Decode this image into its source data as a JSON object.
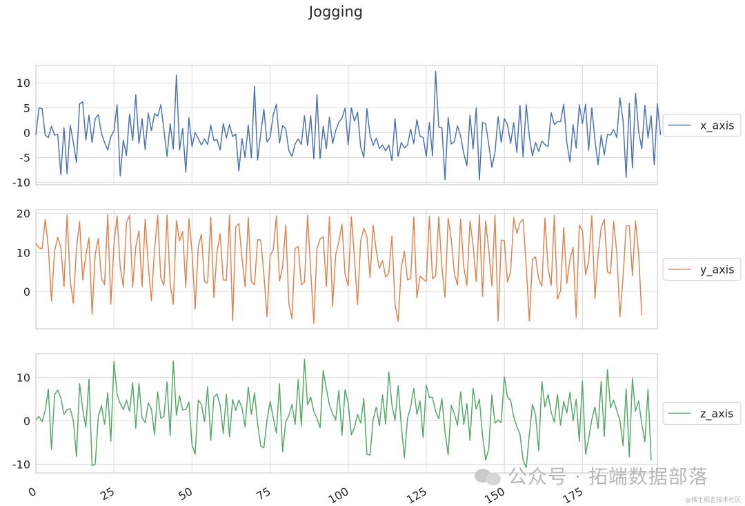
{
  "chart_data": {
    "type": "line",
    "title": "Jogging",
    "xlim": [
      0,
      199
    ],
    "x_ticks": [
      0,
      25,
      50,
      75,
      100,
      125,
      150,
      175
    ],
    "x_tick_labels": [
      "0",
      "25",
      "50",
      "75",
      "100",
      "125",
      "150",
      "175"
    ],
    "grid": true,
    "legend_position": "right",
    "series": [
      {
        "name": "x_axis",
        "color": "#4c72b0",
        "ylim": [
          -10.5,
          13.5
        ],
        "y_ticks": [
          10,
          5,
          0,
          -5,
          -10
        ],
        "values": [
          -0.5,
          5.0,
          4.8,
          -0.5,
          -1.0,
          1.3,
          -0.5,
          -0.4,
          -8.5,
          1.0,
          -8.3,
          1.5,
          -2.0,
          -6.0,
          5.8,
          6.2,
          -1.5,
          3.5,
          -2.0,
          2.8,
          3.6,
          -0.2,
          -2.0,
          -3.5,
          -0.8,
          0.3,
          5.6,
          -8.7,
          -1.5,
          -4.6,
          3.7,
          -1.6,
          7.6,
          -2.2,
          2.8,
          -3.4,
          3.9,
          0.4,
          3.8,
          3.3,
          5.6,
          0.5,
          -4.8,
          1.8,
          -3.3,
          11.6,
          -3.5,
          0.8,
          -8.0,
          3.0,
          -2.8,
          0.0,
          -1.2,
          -2.5,
          -1.3,
          -2.4,
          1.5,
          -1.6,
          -1.4,
          -3.5,
          1.8,
          -1.1,
          1.6,
          -0.8,
          -0.3,
          -7.7,
          -1.2,
          -5.0,
          1.5,
          -5.1,
          9.3,
          -5.5,
          -0.3,
          4.7,
          -1.9,
          -1.0,
          3.6,
          5.7,
          -2.1,
          1.4,
          0.8,
          -3.6,
          -4.8,
          -2.3,
          -1.3,
          -2.4,
          3.4,
          -2.6,
          3.4,
          -5.3,
          7.6,
          -5.2,
          1.3,
          -3.2,
          3.1,
          -2.2,
          0.4,
          2.1,
          2.9,
          4.9,
          -2.5,
          5.0,
          2.3,
          4.1,
          -2.9,
          -5.0,
          4.8,
          -0.5,
          -2.6,
          -1.1,
          -3.2,
          -2.5,
          -3.7,
          -2.5,
          -5.6,
          2.8,
          -4.8,
          -2.0,
          -3.1,
          -2.5,
          0.7,
          -2.2,
          2.6,
          -0.7,
          -1.0,
          -4.8,
          2.0,
          -4.7,
          12.3,
          1.1,
          1.0,
          -9.5,
          3.0,
          -2.3,
          -1.8,
          1.4,
          -0.7,
          -4.2,
          -6.7,
          3.5,
          -3.3,
          5.0,
          -9.5,
          2.0,
          1.8,
          -2.4,
          -7.0,
          -4.0,
          3.2,
          -2.0,
          2.8,
          1.6,
          -2.2,
          2.0,
          -4.0,
          5.5,
          -4.9,
          5.6,
          -0.8,
          -4.7,
          -2.0,
          -3.8,
          -1.7,
          -2.4,
          -2.8,
          4.0,
          1.6,
          2.2,
          2.2,
          5.7,
          -2.0,
          -5.9,
          1.6,
          -3.1,
          5.6,
          1.8,
          5.7,
          -3.6,
          5.0,
          -1.4,
          -6.5,
          -0.5,
          -4.5,
          -0.4,
          -0.5,
          0.6,
          -1.0,
          7.0,
          2.4,
          -9.0,
          5.9,
          -7.1,
          7.9,
          0.2,
          -3.3,
          5.5,
          -1.1,
          3.4,
          -6.5,
          5.8,
          -0.5
        ]
      },
      {
        "name": "y_axis",
        "color": "#dd8452",
        "ylim": [
          -9.5,
          21.0
        ],
        "y_ticks": [
          20,
          10,
          0
        ],
        "values": [
          12.4,
          11.2,
          11.0,
          18.5,
          11.2,
          -2.4,
          10.5,
          13.9,
          11.3,
          1.3,
          19.7,
          2.8,
          -3.0,
          11.1,
          18.0,
          3.0,
          9.3,
          13.8,
          -5.8,
          9.6,
          13.6,
          3.4,
          1.8,
          19.7,
          -3.2,
          12.1,
          19.4,
          6.4,
          1.2,
          17.6,
          19.5,
          1.2,
          11.6,
          15.6,
          1.3,
          18.6,
          6.7,
          -2.3,
          10.9,
          19.5,
          3.5,
          1.6,
          19.6,
          1.9,
          -3.2,
          18.2,
          13.0,
          15.4,
          1.1,
          18.7,
          10.3,
          -4.4,
          11.5,
          14.7,
          2.6,
          2.2,
          19.1,
          -1.5,
          10.2,
          14.8,
          3.0,
          2.9,
          19.6,
          -7.4,
          16.5,
          17.4,
          8.5,
          1.3,
          19.0,
          2.5,
          1.8,
          13.3,
          13.2,
          4.6,
          -6.4,
          9.2,
          10.7,
          19.4,
          2.7,
          6.3,
          17.1,
          -3.0,
          -6.9,
          11.0,
          11.6,
          1.8,
          2.5,
          19.6,
          5.2,
          -8.1,
          10.9,
          13.5,
          14.0,
          1.3,
          19.2,
          -3.8,
          9.5,
          12.7,
          17.3,
          4.5,
          1.5,
          19.2,
          8.7,
          -3.3,
          13.0,
          16.2,
          14.0,
          3.6,
          17.0,
          10.3,
          6.0,
          8.0,
          3.7,
          4.8,
          14.2,
          -3.3,
          -7.6,
          6.2,
          10.3,
          3.0,
          3.4,
          19.1,
          -1.6,
          4.0,
          3.2,
          2.6,
          19.3,
          3.3,
          4.0,
          19.2,
          6.2,
          -1.4,
          18.8,
          13.4,
          4.6,
          1.7,
          18.6,
          6.4,
          1.6,
          18.1,
          11.8,
          2.6,
          19.7,
          -1.2,
          18.1,
          10.8,
          1.5,
          19.6,
          -7.5,
          13.2,
          13.0,
          2.4,
          5.2,
          18.9,
          14.9,
          17.6,
          18.5,
          6.5,
          -7.5,
          8.3,
          8.9,
          3.3,
          1.4,
          18.8,
          6.0,
          1.6,
          19.5,
          -1.9,
          0.2,
          16.4,
          2.1,
          8.3,
          11.3,
          -6.6,
          17.0,
          15.7,
          4.3,
          7.8,
          19.4,
          -1.8,
          9.3,
          16.4,
          18.5,
          5.1,
          4.6,
          18.0,
          9.9,
          -6.4,
          3.7,
          16.8,
          16.9,
          4.1,
          18.1,
          9.6,
          -6.0
        ]
      },
      {
        "name": "z_axis",
        "color": "#55a868",
        "ylim": [
          -12.0,
          15.5
        ],
        "y_ticks": [
          10,
          0,
          -10
        ],
        "values": [
          0.3,
          1.0,
          -0.2,
          2.5,
          7.3,
          -6.6,
          6.0,
          7.1,
          5.3,
          1.5,
          2.6,
          2.8,
          0.1,
          -8.2,
          8.6,
          2.7,
          -1.5,
          9.6,
          -10.3,
          -10.0,
          1.0,
          3.5,
          -0.8,
          6.5,
          -4.7,
          13.7,
          6.2,
          4.0,
          2.6,
          4.8,
          2.2,
          8.8,
          -1.7,
          8.6,
          0.7,
          -0.4,
          4.1,
          2.7,
          -3.2,
          6.7,
          0.6,
          1.0,
          9.0,
          -3.4,
          13.8,
          1.3,
          5.8,
          2.5,
          2.6,
          4.3,
          -5.5,
          -7.7,
          4.8,
          3.8,
          -0.2,
          7.9,
          -4.5,
          5.5,
          6.2,
          3.6,
          -2.9,
          6.1,
          -3.7,
          4.9,
          2.4,
          4.8,
          3.0,
          -1.4,
          7.8,
          1.5,
          6.5,
          -0.6,
          -5.8,
          -6.2,
          0.1,
          4.5,
          0.8,
          -2.8,
          8.6,
          -7.2,
          -0.2,
          1.2,
          3.8,
          -0.8,
          9.5,
          -1.2,
          14.2,
          3.7,
          5.5,
          2.2,
          0.6,
          -1.6,
          11.6,
          7.4,
          3.7,
          1.6,
          0.2,
          7.0,
          -3.3,
          7.2,
          4.2,
          -3.2,
          -1.6,
          1.5,
          -0.5,
          5.2,
          -7.7,
          -7.9,
          0.4,
          3.2,
          -1.1,
          6.0,
          -0.7,
          11.3,
          3.7,
          0.1,
          8.1,
          -1.1,
          -8.5,
          0.6,
          3.2,
          7.5,
          1.5,
          4.6,
          -3.8,
          8.3,
          5.4,
          5.4,
          2.2,
          0.5,
          5.2,
          -2.6,
          -7.8,
          3.6,
          1.6,
          -1.0,
          6.7,
          -0.8,
          4.0,
          -4.5,
          7.5,
          2.7,
          5.0,
          -3.3,
          -9.0,
          -6.5,
          6.0,
          -0.5,
          0.2,
          -0.4,
          10.1,
          5.5,
          4.8,
          0.9,
          -1.3,
          -3.1,
          -9.0,
          -10.8,
          -3.2,
          3.8,
          1.3,
          -6.9,
          9.1,
          3.2,
          6.1,
          2.0,
          -0.3,
          6.1,
          -1.0,
          4.5,
          1.8,
          6.6,
          0.0,
          5.0,
          -4.8,
          9.2,
          -7.7,
          -4.0,
          0.3,
          3.2,
          -1.8,
          9.1,
          -3.6,
          11.8,
          3.0,
          4.8,
          2.4,
          0.1,
          -5.7,
          7.4,
          -8.3,
          9.8,
          2.2,
          4.6,
          -0.7,
          -4.8,
          7.3,
          -9.1
        ]
      }
    ]
  },
  "watermark": {
    "text": "公众号 · 拓端数据部落",
    "credit": "@稀土掘金技术社区"
  }
}
